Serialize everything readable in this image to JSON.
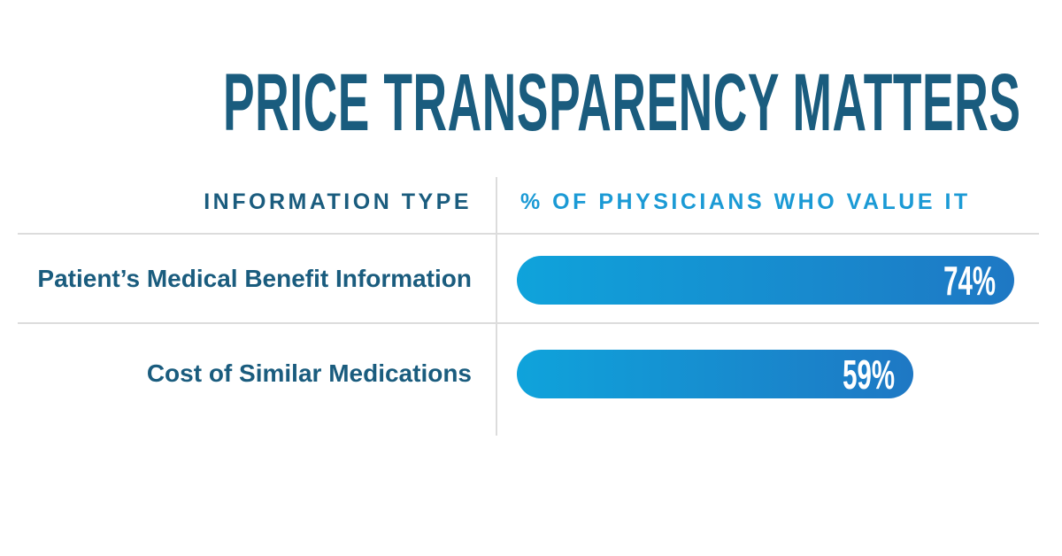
{
  "title": "PRICE TRANSPARENCY MATTERS",
  "table": {
    "columns": [
      {
        "label": "INFORMATION TYPE"
      },
      {
        "label": "% OF PHYSICIANS WHO VALUE IT"
      }
    ],
    "rows": [
      {
        "label": "Patient’s Medical Benefit Information",
        "value": 74,
        "value_label": "74%"
      },
      {
        "label": "Cost of Similar Medications",
        "value": 59,
        "value_label": "59%"
      }
    ]
  },
  "chart_data": {
    "type": "bar",
    "orientation": "horizontal",
    "title": "PRICE TRANSPARENCY MATTERS",
    "categories": [
      "Patient’s Medical Benefit Information",
      "Cost of Similar Medications"
    ],
    "values": [
      74,
      59
    ],
    "value_labels": [
      "74%",
      "59%"
    ],
    "xlabel": "% OF PHYSICIANS WHO VALUE IT",
    "ylabel": "INFORMATION TYPE",
    "xlim": [
      0,
      100
    ],
    "grid": false,
    "legend": false,
    "bar_labels_inside": true
  },
  "colors": {
    "dark_teal": "#1A5C7E",
    "light_blue": "#1B9AD5",
    "bar_gradient_start": "#0FA3DB",
    "bar_gradient_end": "#1E78C4",
    "bar_value_text": "#FFFFFF",
    "divider": "#DCDCDC",
    "background": "#FFFFFF"
  }
}
